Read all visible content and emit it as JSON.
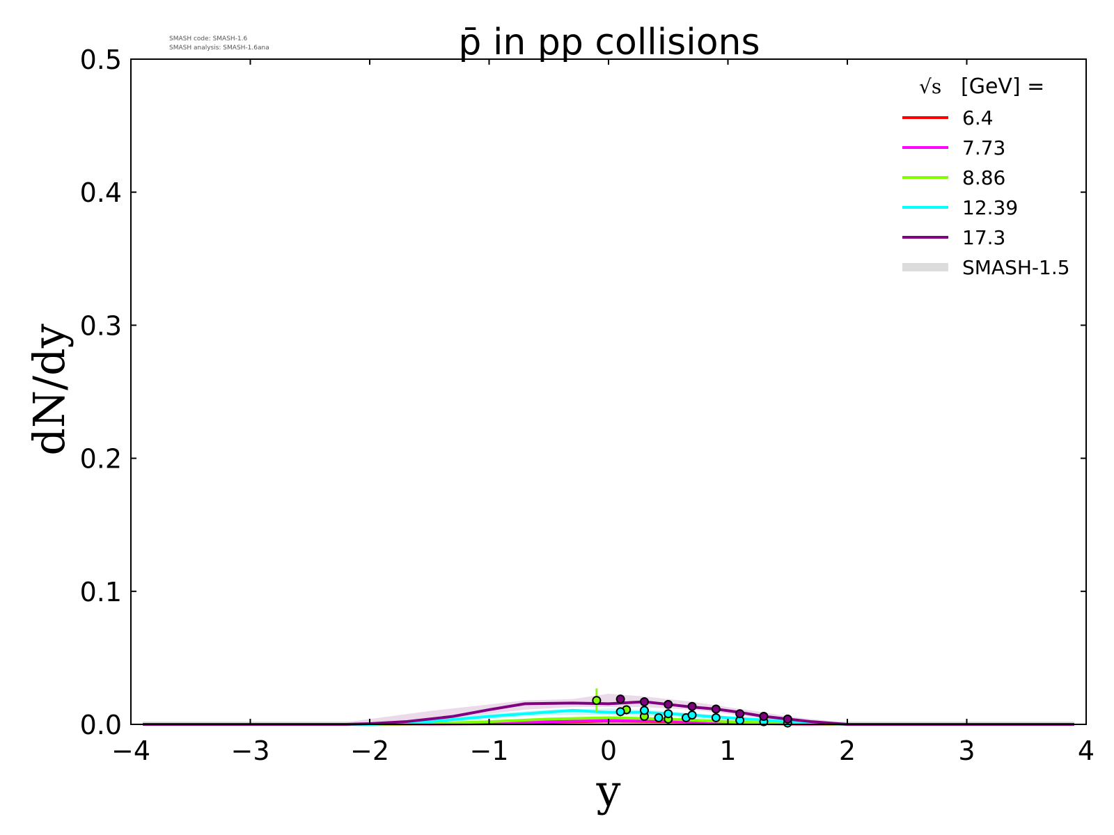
{
  "chart_data": {
    "type": "line",
    "title": "p̄ in pp collisions",
    "xlabel": "y",
    "ylabel": "dN/dy",
    "xlim": [
      -4,
      4
    ],
    "ylim": [
      0,
      0.5
    ],
    "xticks": [
      -4,
      -3,
      -2,
      -1,
      0,
      1,
      2,
      3,
      4
    ],
    "xtick_labels": [
      "−4",
      "−3",
      "−2",
      "−1",
      "0",
      "1",
      "2",
      "3",
      "4"
    ],
    "yticks": [
      0,
      0.1,
      0.2,
      0.3,
      0.4,
      0.5
    ],
    "ytick_labels": [
      "0.0",
      "0.1",
      "0.2",
      "0.3",
      "0.4",
      "0.5"
    ],
    "grid": false,
    "legend_position": "top-right",
    "legend_title": "[GeV] =",
    "legend_title_symbol": "√s",
    "version_info": [
      "SMASH code:      SMASH-1.6",
      "SMASH analysis: SMASH-1.6ana"
    ],
    "series": [
      {
        "name": "6.4",
        "color": "#ff0000",
        "x": [
          -3.9,
          -2.0,
          -1.0,
          -0.5,
          0.0,
          0.5,
          1.0,
          1.5,
          2.0,
          3.9
        ],
        "y": [
          0.0,
          0.0,
          0.0005,
          0.0015,
          0.0025,
          0.002,
          0.001,
          0.0003,
          0.0,
          0.0
        ]
      },
      {
        "name": "7.73",
        "color": "#ff00ff",
        "x": [
          -3.9,
          -2.0,
          -1.0,
          -0.5,
          0.0,
          0.5,
          1.0,
          1.5,
          2.0,
          3.9
        ],
        "y": [
          0.0,
          0.0,
          0.0008,
          0.002,
          0.003,
          0.0025,
          0.0015,
          0.0005,
          0.0,
          0.0
        ]
      },
      {
        "name": "8.86",
        "color": "#7fff00",
        "x": [
          -3.9,
          -2.0,
          -1.5,
          -1.0,
          -0.5,
          0.0,
          0.5,
          1.0,
          1.5,
          2.0,
          3.9
        ],
        "y": [
          0.0,
          0.0,
          0.0005,
          0.002,
          0.004,
          0.005,
          0.004,
          0.002,
          0.0008,
          0.0,
          0.0
        ],
        "points": {
          "x": [
            -0.1,
            0.15,
            0.3,
            0.5
          ],
          "y": [
            0.018,
            0.011,
            0.006,
            0.004
          ],
          "yerr": [
            0.009,
            0.002,
            0.0015,
            0.001
          ]
        }
      },
      {
        "name": "12.39",
        "color": "#00ffff",
        "x": [
          -3.9,
          -2.0,
          -1.5,
          -1.0,
          -0.7,
          -0.3,
          0.0,
          0.3,
          0.7,
          1.0,
          1.5,
          2.0,
          3.9
        ],
        "y": [
          0.0,
          0.0,
          0.002,
          0.006,
          0.008,
          0.0105,
          0.009,
          0.009,
          0.007,
          0.005,
          0.002,
          0.0,
          0.0
        ],
        "points": {
          "x": [
            0.1,
            0.3,
            0.42,
            0.5,
            0.65,
            0.7,
            0.9,
            1.1,
            1.3,
            1.5
          ],
          "y": [
            0.0095,
            0.0105,
            0.005,
            0.008,
            0.005,
            0.007,
            0.005,
            0.003,
            0.002,
            0.001
          ],
          "yerr": [
            0.001,
            0.001,
            0.001,
            0.001,
            0.001,
            0.001,
            0.001,
            0.001,
            0.001,
            0.001
          ]
        }
      },
      {
        "name": "17.3",
        "color": "#800080",
        "x": [
          -3.9,
          -2.2,
          -2.0,
          -1.7,
          -1.3,
          -1.0,
          -0.7,
          -0.3,
          0.0,
          0.3,
          0.5,
          0.7,
          0.9,
          1.1,
          1.3,
          1.5,
          1.7,
          2.0,
          3.9
        ],
        "y": [
          0.0,
          0.0,
          0.0005,
          0.002,
          0.006,
          0.011,
          0.0155,
          0.016,
          0.0155,
          0.017,
          0.015,
          0.013,
          0.0115,
          0.009,
          0.006,
          0.004,
          0.002,
          0.0,
          0.0
        ],
        "points": {
          "x": [
            0.1,
            0.3,
            0.5,
            0.7,
            0.9,
            1.1,
            1.3,
            1.5
          ],
          "y": [
            0.019,
            0.017,
            0.015,
            0.0135,
            0.0115,
            0.008,
            0.006,
            0.004
          ],
          "yerr": [
            0.001,
            0.001,
            0.001,
            0.001,
            0.001,
            0.001,
            0.001,
            0.001
          ]
        }
      }
    ],
    "reference": {
      "name": "SMASH-1.5",
      "color": "#dcdcdc",
      "bands": [
        {
          "color": "#e6d3e6",
          "x": [
            -3.9,
            -2.2,
            -2.0,
            -1.5,
            -1.0,
            -0.7,
            -0.3,
            0.0,
            0.3,
            0.7,
            1.0,
            1.3,
            1.5,
            1.8,
            2.0,
            3.9
          ],
          "ylo": [
            0.0,
            0.0,
            0.0,
            0.002,
            0.008,
            0.011,
            0.013,
            0.013,
            0.013,
            0.011,
            0.008,
            0.004,
            0.002,
            0.0005,
            0.0,
            0.0
          ],
          "yhi": [
            0.001,
            0.0015,
            0.004,
            0.01,
            0.015,
            0.018,
            0.019,
            0.023,
            0.021,
            0.017,
            0.013,
            0.009,
            0.006,
            0.003,
            0.001,
            0.001
          ]
        },
        {
          "color": "#cdf2f2",
          "x": [
            -3.9,
            -2.0,
            -1.5,
            -1.0,
            -0.5,
            0.0,
            0.5,
            1.0,
            1.5,
            2.0,
            3.9
          ],
          "ylo": [
            0.0,
            0.0,
            0.001,
            0.004,
            0.007,
            0.007,
            0.006,
            0.003,
            0.001,
            0.0,
            0.0
          ],
          "yhi": [
            0.001,
            0.001,
            0.003,
            0.008,
            0.011,
            0.012,
            0.01,
            0.006,
            0.003,
            0.001,
            0.001
          ]
        }
      ]
    }
  }
}
